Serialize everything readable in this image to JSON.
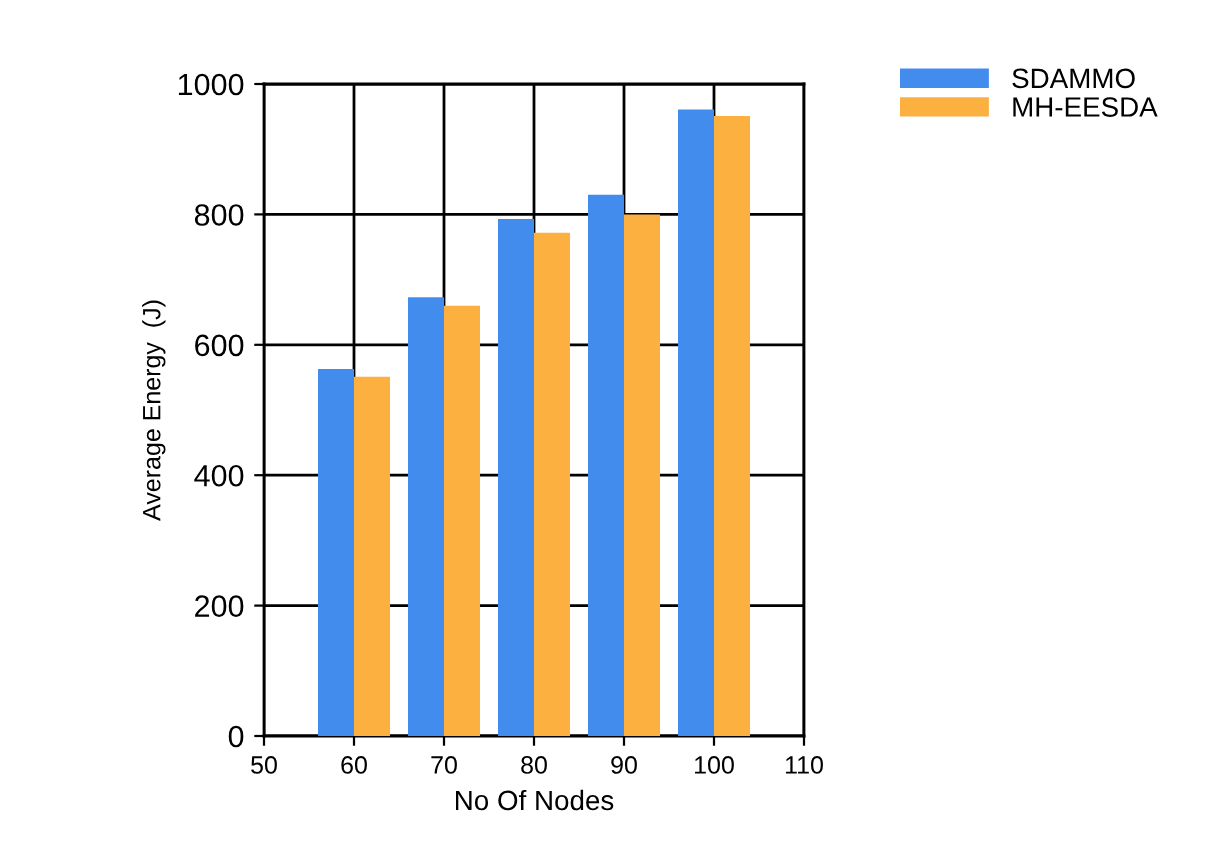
{
  "chart_data": {
    "type": "bar",
    "xlabel": "No Of Nodes",
    "ylabel": "Average Energy  (J)",
    "x": [
      60,
      70,
      80,
      90,
      100
    ],
    "series": [
      {
        "name": "SDAMMO",
        "color": "#428cee",
        "values": [
          563,
          673,
          793,
          830,
          961
        ]
      },
      {
        "name": "MH-EESDA",
        "color": "#fbb040",
        "values": [
          551,
          660,
          772,
          800,
          951
        ]
      }
    ],
    "xlim": [
      50,
      110
    ],
    "xticks": [
      50,
      60,
      70,
      80,
      90,
      100,
      110
    ],
    "ylim": [
      0,
      1000
    ],
    "yticks": [
      0,
      200,
      400,
      600,
      800,
      1000
    ],
    "grid": true,
    "legend": "top right"
  }
}
